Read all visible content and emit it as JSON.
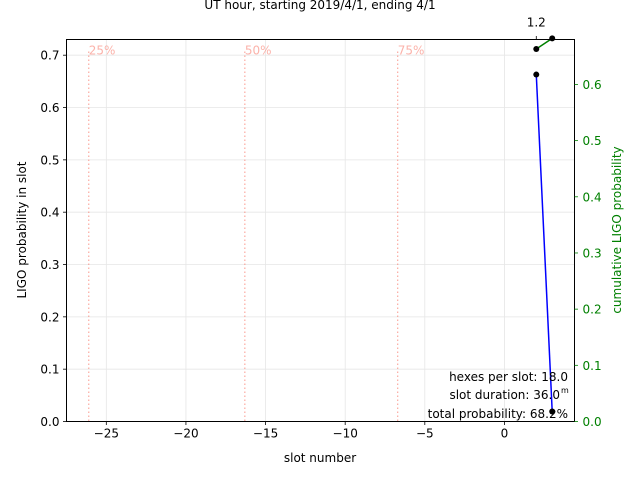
{
  "chart_data": {
    "type": "line",
    "title": "UT hour, starting 2019/4/1, ending 4/1",
    "xlabel": "slot number",
    "ylabel": "LIGO probability in slot",
    "ylabel_right": "cumulative LIGO probability",
    "xlim": [
      -27.5,
      4.4
    ],
    "ylim": [
      0,
      0.73
    ],
    "ylim_right": [
      0,
      0.68
    ],
    "x_ticks": [
      -25,
      -20,
      -15,
      -10,
      -5,
      0
    ],
    "y_ticks": [
      0.0,
      0.1,
      0.2,
      0.3,
      0.4,
      0.5,
      0.6,
      0.7
    ],
    "y_ticks_right": [
      0.0,
      0.1,
      0.2,
      0.3,
      0.4,
      0.5,
      0.6
    ],
    "top_axis_ticks": [
      {
        "x": 2,
        "label": "1.2"
      }
    ],
    "grid": true,
    "series": [
      {
        "axis": "left",
        "color": "#0000ff",
        "x": [
          2,
          3
        ],
        "y": [
          0.663,
          0.019
        ]
      },
      {
        "axis": "right",
        "color": "#008000",
        "x": [
          2,
          3
        ],
        "y": [
          0.663,
          0.682
        ]
      }
    ],
    "percentile_lines": [
      {
        "x": -26.1,
        "label": "25%"
      },
      {
        "x": -16.3,
        "label": "50%"
      },
      {
        "x": -6.7,
        "label": "75%"
      }
    ],
    "annotations": {
      "hexes_per_slot": "hexes per slot: 18.0",
      "slot_duration": "slot duration:  36.0",
      "slot_duration_unit": "m",
      "total_probability": "total probability:  68.2%"
    },
    "colors": {
      "left_series": "#0000ff",
      "right_series": "#008000",
      "right_axis": "#008000",
      "percentile": "#fa8072",
      "marker": "#000000"
    }
  }
}
